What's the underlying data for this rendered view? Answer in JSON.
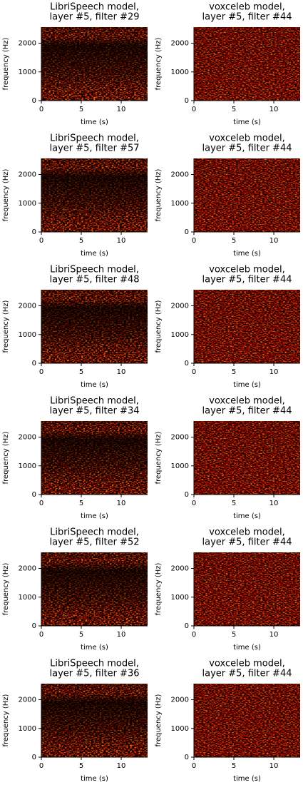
{
  "chart_data": [
    {
      "type": "heatmap",
      "title": [
        "LibriSpeech model,",
        "layer #5, filter #29"
      ],
      "x_label": "time (s)",
      "y_label": "frequency (Hz)",
      "xlim": [
        0,
        13.3
      ],
      "xticks": [
        0,
        5,
        10
      ],
      "ylim": [
        0,
        2560
      ],
      "yticks": [
        0,
        1000,
        2000
      ]
    },
    {
      "type": "heatmap",
      "title": [
        "voxceleb model,",
        "layer #5, filter #44"
      ],
      "x_label": "time (s)",
      "y_label": "frequency (Hz)",
      "xlim": [
        0,
        13.3
      ],
      "xticks": [
        0,
        5,
        10
      ],
      "ylim": [
        0,
        2560
      ],
      "yticks": [
        0,
        1000,
        2000
      ]
    },
    {
      "type": "heatmap",
      "title": [
        "LibriSpeech model,",
        "layer #5, filter #57"
      ],
      "x_label": "time (s)",
      "y_label": "frequency (Hz)",
      "xlim": [
        0,
        13.3
      ],
      "xticks": [
        0,
        5,
        10
      ],
      "ylim": [
        0,
        2560
      ],
      "yticks": [
        0,
        1000,
        2000
      ]
    },
    {
      "type": "heatmap",
      "title": [
        "voxceleb model,",
        "layer #5, filter #44"
      ],
      "x_label": "time (s)",
      "y_label": "frequency (Hz)",
      "xlim": [
        0,
        13.3
      ],
      "xticks": [
        0,
        5,
        10
      ],
      "ylim": [
        0,
        2560
      ],
      "yticks": [
        0,
        1000,
        2000
      ]
    },
    {
      "type": "heatmap",
      "title": [
        "LibriSpeech model,",
        "layer #5, filter #48"
      ],
      "x_label": "time (s)",
      "y_label": "frequency (Hz)",
      "xlim": [
        0,
        13.3
      ],
      "xticks": [
        0,
        5,
        10
      ],
      "ylim": [
        0,
        2560
      ],
      "yticks": [
        0,
        1000,
        2000
      ]
    },
    {
      "type": "heatmap",
      "title": [
        "voxceleb model,",
        "layer #5, filter #44"
      ],
      "x_label": "time (s)",
      "y_label": "frequency (Hz)",
      "xlim": [
        0,
        13.3
      ],
      "xticks": [
        0,
        5,
        10
      ],
      "ylim": [
        0,
        2560
      ],
      "yticks": [
        0,
        1000,
        2000
      ]
    },
    {
      "type": "heatmap",
      "title": [
        "LibriSpeech model,",
        "layer #5, filter #34"
      ],
      "x_label": "time (s)",
      "y_label": "frequency (Hz)",
      "xlim": [
        0,
        13.3
      ],
      "xticks": [
        0,
        5,
        10
      ],
      "ylim": [
        0,
        2560
      ],
      "yticks": [
        0,
        1000,
        2000
      ]
    },
    {
      "type": "heatmap",
      "title": [
        "voxceleb model,",
        "layer #5, filter #44"
      ],
      "x_label": "time (s)",
      "y_label": "frequency (Hz)",
      "xlim": [
        0,
        13.3
      ],
      "xticks": [
        0,
        5,
        10
      ],
      "ylim": [
        0,
        2560
      ],
      "yticks": [
        0,
        1000,
        2000
      ]
    },
    {
      "type": "heatmap",
      "title": [
        "LibriSpeech model,",
        "layer #5, filter #52"
      ],
      "x_label": "time (s)",
      "y_label": "frequency (Hz)",
      "xlim": [
        0,
        13.3
      ],
      "xticks": [
        0,
        5,
        10
      ],
      "ylim": [
        0,
        2560
      ],
      "yticks": [
        0,
        1000,
        2000
      ]
    },
    {
      "type": "heatmap",
      "title": [
        "voxceleb model,",
        "layer #5, filter #44"
      ],
      "x_label": "time (s)",
      "y_label": "frequency (Hz)",
      "xlim": [
        0,
        13.3
      ],
      "xticks": [
        0,
        5,
        10
      ],
      "ylim": [
        0,
        2560
      ],
      "yticks": [
        0,
        1000,
        2000
      ]
    },
    {
      "type": "heatmap",
      "title": [
        "LibriSpeech model,",
        "layer #5, filter #36"
      ],
      "x_label": "time (s)",
      "y_label": "frequency (Hz)",
      "xlim": [
        0,
        13.3
      ],
      "xticks": [
        0,
        5,
        10
      ],
      "ylim": [
        0,
        2560
      ],
      "yticks": [
        0,
        1000,
        2000
      ]
    },
    {
      "type": "heatmap",
      "title": [
        "voxceleb model,",
        "layer #5, filter #44"
      ],
      "x_label": "time (s)",
      "y_label": "frequency (Hz)",
      "xlim": [
        0,
        13.3
      ],
      "xticks": [
        0,
        5,
        10
      ],
      "ylim": [
        0,
        2560
      ],
      "yticks": [
        0,
        1000,
        2000
      ]
    }
  ]
}
